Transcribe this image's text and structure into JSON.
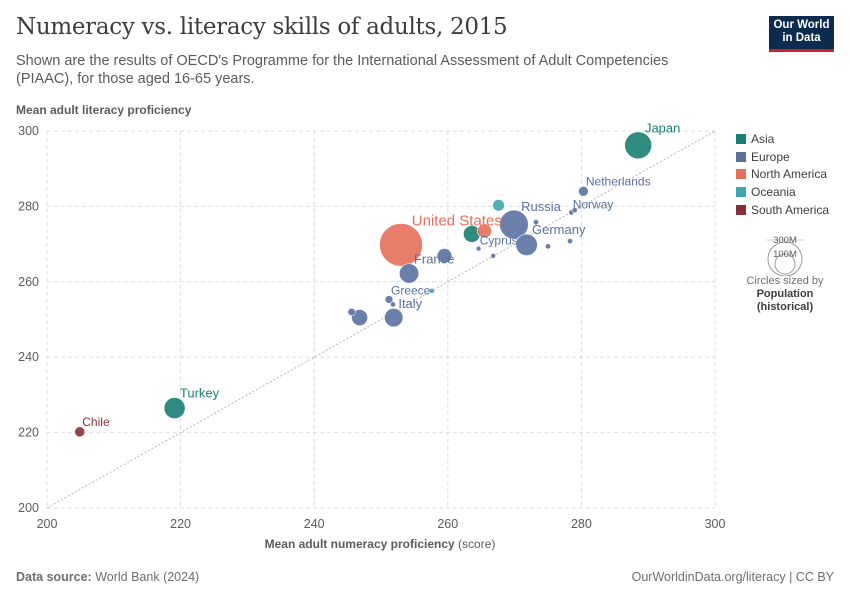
{
  "header": {
    "title": "Numeracy vs. literacy skills of adults, 2015",
    "subtitle": "Shown are the results of OECD's Programme for the International Assessment of Adult Competencies (PIAAC), for those aged 16-65 years.",
    "logo_line1": "Our World",
    "logo_line2": "in Data"
  },
  "footer": {
    "source_label": "Data source:",
    "source_text": "World Bank (2024)",
    "url": "OurWorldinData.org/literacy | CC BY"
  },
  "legend": {
    "items": [
      {
        "label": "Asia",
        "color": "#1a7f72"
      },
      {
        "label": "Europe",
        "color": "#5a71a0"
      },
      {
        "label": "North America",
        "color": "#e46f5a"
      },
      {
        "label": "Oceania",
        "color": "#3fa5b0"
      },
      {
        "label": "South America",
        "color": "#883039"
      }
    ],
    "size_big": "300M",
    "size_small": "100M",
    "size_note1": "Circles sized by",
    "size_note2": "Population",
    "size_note3": "(historical)"
  },
  "chart_data": {
    "type": "scatter",
    "title": "Numeracy vs. literacy skills of adults, 2015",
    "xlabel": "Mean adult numeracy proficiency",
    "xlabel_unit": "(score)",
    "ylabel": "Mean adult literacy proficiency",
    "xlim": [
      200,
      300
    ],
    "ylim": [
      200,
      300
    ],
    "xticks": [
      200,
      220,
      240,
      260,
      280,
      300
    ],
    "yticks": [
      200,
      220,
      240,
      260,
      280,
      300
    ],
    "grid": true,
    "diagonal_reference": true,
    "legend_placement": "right",
    "points": [
      {
        "label": "Japan",
        "x": 288.5,
        "y": 296.2,
        "region": "Asia",
        "pop_m": 127
      },
      {
        "label": "Netherlands",
        "x": 280.3,
        "y": 284.0,
        "region": "Europe",
        "pop_m": 17
      },
      {
        "label": "Norway",
        "x": 278.5,
        "y": 278.4,
        "region": "Europe",
        "pop_m": 5
      },
      {
        "label": "",
        "x": 279.0,
        "y": 279.0,
        "region": "Europe",
        "pop_m": 5
      },
      {
        "label": "Russia",
        "x": 269.9,
        "y": 275.2,
        "region": "Europe",
        "pop_m": 144
      },
      {
        "label": "",
        "x": 273.2,
        "y": 275.8,
        "region": "Europe",
        "pop_m": 5
      },
      {
        "label": "United States",
        "x": 253.0,
        "y": 269.8,
        "region": "North America",
        "pop_m": 320
      },
      {
        "label": "",
        "x": 265.5,
        "y": 273.5,
        "region": "North America",
        "pop_m": 35
      },
      {
        "label": "",
        "x": 267.6,
        "y": 280.3,
        "region": "Oceania",
        "pop_m": 24
      },
      {
        "label": "",
        "x": 263.6,
        "y": 272.7,
        "region": "Asia",
        "pop_m": 50
      },
      {
        "label": "Germany",
        "x": 271.8,
        "y": 269.8,
        "region": "Europe",
        "pop_m": 81
      },
      {
        "label": "Cyprus",
        "x": 264.6,
        "y": 268.8,
        "region": "Europe",
        "pop_m": 1
      },
      {
        "label": "",
        "x": 266.8,
        "y": 266.9,
        "region": "Europe",
        "pop_m": 1
      },
      {
        "label": "",
        "x": 275.0,
        "y": 269.4,
        "region": "Europe",
        "pop_m": 5
      },
      {
        "label": "",
        "x": 278.3,
        "y": 270.8,
        "region": "Europe",
        "pop_m": 5
      },
      {
        "label": "",
        "x": 259.5,
        "y": 266.9,
        "region": "Europe",
        "pop_m": 38
      },
      {
        "label": "France",
        "x": 254.2,
        "y": 262.2,
        "region": "Europe",
        "pop_m": 66
      },
      {
        "label": "Greece",
        "x": 251.2,
        "y": 255.3,
        "region": "Europe",
        "pop_m": 11
      },
      {
        "label": "",
        "x": 257.6,
        "y": 257.6,
        "region": "Oceania",
        "pop_m": 5
      },
      {
        "label": "Italy",
        "x": 251.9,
        "y": 250.5,
        "region": "Europe",
        "pop_m": 60
      },
      {
        "label": "",
        "x": 245.6,
        "y": 252.0,
        "region": "Europe",
        "pop_m": 10
      },
      {
        "label": "",
        "x": 246.8,
        "y": 250.5,
        "region": "Europe",
        "pop_m": 46
      },
      {
        "label": "",
        "x": 251.8,
        "y": 254.0,
        "region": "Europe",
        "pop_m": 5
      },
      {
        "label": "Turkey",
        "x": 219.1,
        "y": 226.5,
        "region": "Asia",
        "pop_m": 78
      },
      {
        "label": "Chile",
        "x": 204.9,
        "y": 220.2,
        "region": "South America",
        "pop_m": 18
      }
    ]
  }
}
